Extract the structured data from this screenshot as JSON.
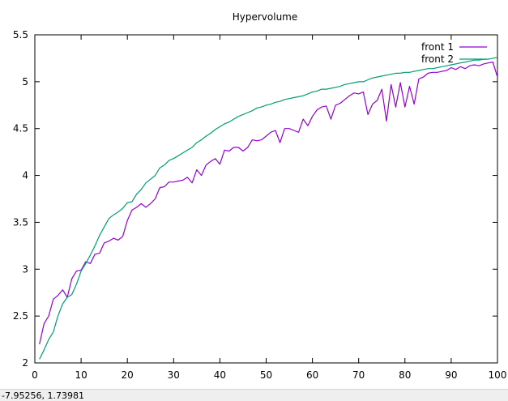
{
  "statusbar": {
    "coords": "-7.95256,  1.73981"
  },
  "chart_data": {
    "type": "line",
    "title": "Hypervolume",
    "xlabel": "",
    "ylabel": "",
    "xlim": [
      0,
      100
    ],
    "ylim": [
      2,
      5.5
    ],
    "xticks": [
      0,
      10,
      20,
      30,
      40,
      50,
      60,
      70,
      80,
      90,
      100
    ],
    "yticks": [
      2,
      2.5,
      3,
      3.5,
      4,
      4.5,
      5,
      5.5
    ],
    "grid": false,
    "legend_position": "top-right",
    "x": [
      1,
      2,
      3,
      4,
      5,
      6,
      7,
      8,
      9,
      10,
      11,
      12,
      13,
      14,
      15,
      16,
      17,
      18,
      19,
      20,
      21,
      22,
      23,
      24,
      25,
      26,
      27,
      28,
      29,
      30,
      31,
      32,
      33,
      34,
      35,
      36,
      37,
      38,
      39,
      40,
      41,
      42,
      43,
      44,
      45,
      46,
      47,
      48,
      49,
      50,
      51,
      52,
      53,
      54,
      55,
      56,
      57,
      58,
      59,
      60,
      61,
      62,
      63,
      64,
      65,
      66,
      67,
      68,
      69,
      70,
      71,
      72,
      73,
      74,
      75,
      76,
      77,
      78,
      79,
      80,
      81,
      82,
      83,
      84,
      85,
      86,
      87,
      88,
      89,
      90,
      91,
      92,
      93,
      94,
      95,
      96,
      97,
      98,
      99,
      100
    ],
    "series": [
      {
        "name": "front 1",
        "color": "#9400d3",
        "values": [
          2.2,
          2.42,
          2.5,
          2.68,
          2.72,
          2.78,
          2.7,
          2.9,
          2.98,
          2.99,
          3.08,
          3.06,
          3.16,
          3.17,
          3.28,
          3.3,
          3.33,
          3.31,
          3.35,
          3.52,
          3.63,
          3.66,
          3.7,
          3.66,
          3.7,
          3.75,
          3.87,
          3.88,
          3.93,
          3.93,
          3.94,
          3.95,
          3.98,
          3.92,
          4.06,
          4.0,
          4.11,
          4.15,
          4.18,
          4.12,
          4.27,
          4.26,
          4.3,
          4.3,
          4.26,
          4.3,
          4.38,
          4.37,
          4.38,
          4.42,
          4.46,
          4.48,
          4.35,
          4.5,
          4.5,
          4.48,
          4.46,
          4.6,
          4.53,
          4.63,
          4.7,
          4.73,
          4.74,
          4.6,
          4.75,
          4.77,
          4.81,
          4.85,
          4.88,
          4.87,
          4.89,
          4.65,
          4.76,
          4.8,
          4.92,
          4.58,
          4.97,
          4.73,
          4.99,
          4.73,
          4.95,
          4.76,
          5.03,
          5.05,
          5.09,
          5.1,
          5.1,
          5.11,
          5.12,
          5.15,
          5.13,
          5.16,
          5.14,
          5.17,
          5.18,
          5.17,
          5.19,
          5.2,
          5.21,
          5.05
        ]
      },
      {
        "name": "front 2",
        "color": "#009e73",
        "values": [
          2.04,
          2.14,
          2.25,
          2.33,
          2.5,
          2.63,
          2.7,
          2.73,
          2.84,
          2.98,
          3.06,
          3.15,
          3.25,
          3.36,
          3.45,
          3.54,
          3.58,
          3.61,
          3.65,
          3.71,
          3.72,
          3.8,
          3.85,
          3.92,
          3.96,
          4.0,
          4.08,
          4.11,
          4.16,
          4.18,
          4.21,
          4.24,
          4.27,
          4.3,
          4.35,
          4.38,
          4.42,
          4.45,
          4.49,
          4.52,
          4.55,
          4.57,
          4.6,
          4.63,
          4.65,
          4.67,
          4.69,
          4.72,
          4.73,
          4.75,
          4.76,
          4.78,
          4.79,
          4.81,
          4.82,
          4.83,
          4.84,
          4.85,
          4.87,
          4.89,
          4.9,
          4.92,
          4.92,
          4.93,
          4.94,
          4.95,
          4.97,
          4.98,
          4.99,
          5.0,
          5.0,
          5.02,
          5.04,
          5.05,
          5.06,
          5.07,
          5.08,
          5.09,
          5.09,
          5.1,
          5.1,
          5.11,
          5.12,
          5.13,
          5.14,
          5.14,
          5.15,
          5.16,
          5.17,
          5.18,
          5.19,
          5.2,
          5.21,
          5.22,
          5.23,
          5.23,
          5.24,
          5.24,
          5.25,
          5.26
        ]
      }
    ]
  }
}
